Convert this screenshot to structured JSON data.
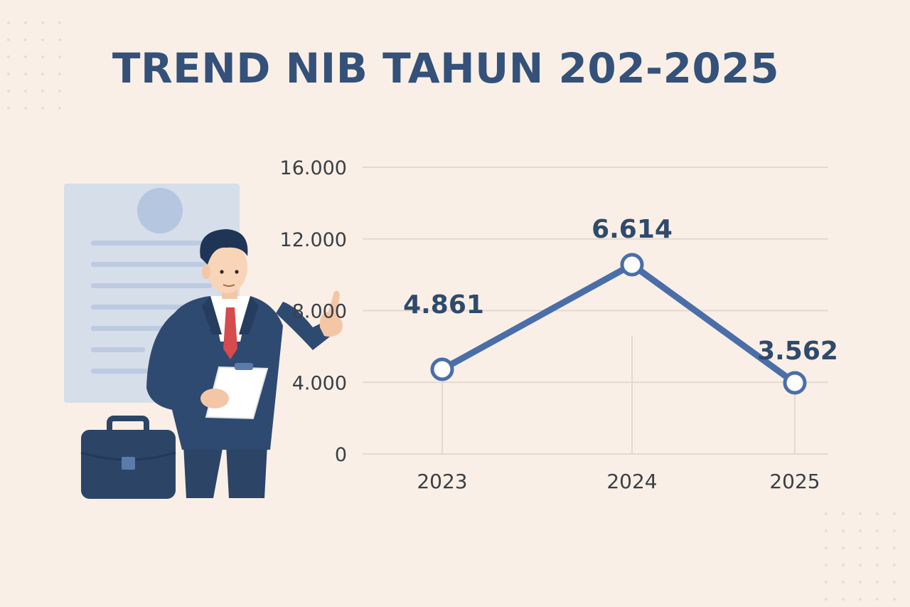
{
  "title": "TREND NIB TAHUN  202-2025",
  "colors": {
    "background": "#f9efe6",
    "line": "#4a6ea8",
    "title": "#345179",
    "grid": "#e4d9cf",
    "suit": "#2c4466"
  },
  "illustration": {
    "figure": "businessman-pointing-icon",
    "briefcase": "briefcase-icon",
    "document": "document-icon",
    "clipboard": "clipboard-icon"
  },
  "chart_data": {
    "type": "line",
    "title": "TREND NIB TAHUN  202-2025",
    "xlabel": "",
    "ylabel": "",
    "categories": [
      "2023",
      "2024",
      "2025"
    ],
    "series": [
      {
        "values": [
          4861,
          6614,
          3562
        ]
      }
    ],
    "data_labels": [
      "4.861",
      "6.614",
      "3.562"
    ],
    "yticks": [
      0,
      4000,
      8000,
      12000,
      16000
    ],
    "ytick_labels": [
      "0",
      "4.000",
      "8.000",
      "12.000",
      "16.000"
    ],
    "ylim": [
      0,
      16000
    ],
    "grid": true,
    "legend": "none"
  }
}
